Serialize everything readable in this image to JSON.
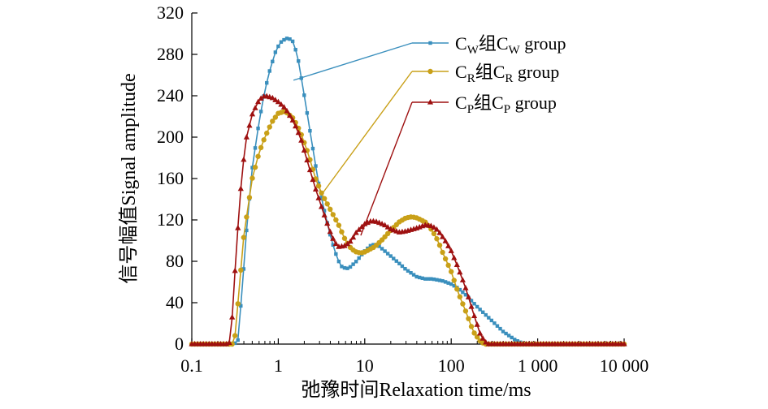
{
  "chart_data": {
    "type": "line",
    "xlabel": "弛豫时间Relaxation time/ms",
    "ylabel": "信号幅值Signal amplitude",
    "x_scale": "log",
    "xlim": [
      0.1,
      10000
    ],
    "ylim": [
      0,
      320
    ],
    "x_ticks": [
      0.1,
      1,
      10,
      100,
      1000,
      10000
    ],
    "x_tick_labels": [
      "0.1",
      "1",
      "10",
      "100",
      "1 000",
      "10 000"
    ],
    "y_ticks": [
      0,
      40,
      80,
      120,
      160,
      200,
      240,
      280,
      320
    ],
    "y_tick_labels": [
      "0",
      "40",
      "80",
      "120",
      "160",
      "200",
      "240",
      "280",
      "320"
    ],
    "grid": false,
    "legend_position": "top-right",
    "series": [
      {
        "name": "CW组CW group",
        "legend": {
          "a": "C",
          "a_sub": "W",
          "mid": "组C",
          "mid_sub": "W",
          "tail": " group"
        },
        "color": "#3a8fbd",
        "marker": "square",
        "points": [
          [
            0.1,
            0
          ],
          [
            0.3,
            0
          ],
          [
            0.34,
            2
          ],
          [
            0.38,
            50
          ],
          [
            0.43,
            110
          ],
          [
            0.5,
            170
          ],
          [
            0.6,
            215
          ],
          [
            0.7,
            245
          ],
          [
            0.8,
            265
          ],
          [
            0.95,
            285
          ],
          [
            1.1,
            293
          ],
          [
            1.3,
            296
          ],
          [
            1.5,
            292
          ],
          [
            1.7,
            275
          ],
          [
            2.0,
            240
          ],
          [
            2.5,
            190
          ],
          [
            3.0,
            150
          ],
          [
            3.5,
            125
          ],
          [
            4.0,
            105
          ],
          [
            4.5,
            90
          ],
          [
            5.0,
            80
          ],
          [
            5.5,
            74
          ],
          [
            6.5,
            73
          ],
          [
            8,
            80
          ],
          [
            10,
            90
          ],
          [
            12,
            96
          ],
          [
            14,
            96
          ],
          [
            17,
            90
          ],
          [
            20,
            85
          ],
          [
            25,
            78
          ],
          [
            30,
            72
          ],
          [
            40,
            65
          ],
          [
            50,
            63
          ],
          [
            60,
            63
          ],
          [
            80,
            61
          ],
          [
            100,
            58
          ],
          [
            120,
            54
          ],
          [
            150,
            47
          ],
          [
            200,
            36
          ],
          [
            300,
            22
          ],
          [
            400,
            12
          ],
          [
            550,
            4
          ],
          [
            700,
            0
          ],
          [
            10000,
            0
          ]
        ]
      },
      {
        "name": "CR组CR group",
        "legend": {
          "a": "C",
          "a_sub": "R",
          "mid": "组C",
          "mid_sub": "R",
          "tail": " group"
        },
        "color": "#c9a018",
        "marker": "circle",
        "points": [
          [
            0.1,
            0
          ],
          [
            0.3,
            0
          ],
          [
            0.32,
            10
          ],
          [
            0.35,
            50
          ],
          [
            0.4,
            105
          ],
          [
            0.5,
            160
          ],
          [
            0.6,
            185
          ],
          [
            0.7,
            200
          ],
          [
            0.85,
            215
          ],
          [
            1.0,
            223
          ],
          [
            1.2,
            225
          ],
          [
            1.5,
            218
          ],
          [
            1.8,
            205
          ],
          [
            2.2,
            185
          ],
          [
            2.7,
            160
          ],
          [
            3.2,
            145
          ],
          [
            4,
            130
          ],
          [
            5,
            115
          ],
          [
            6,
            100
          ],
          [
            7,
            92
          ],
          [
            8,
            89
          ],
          [
            9,
            88
          ],
          [
            10,
            89
          ],
          [
            13,
            94
          ],
          [
            16,
            101
          ],
          [
            20,
            110
          ],
          [
            25,
            118
          ],
          [
            30,
            122
          ],
          [
            35,
            123
          ],
          [
            40,
            122
          ],
          [
            50,
            118
          ],
          [
            60,
            110
          ],
          [
            70,
            100
          ],
          [
            80,
            88
          ],
          [
            100,
            70
          ],
          [
            120,
            50
          ],
          [
            150,
            30
          ],
          [
            180,
            12
          ],
          [
            220,
            2
          ],
          [
            250,
            0
          ],
          [
            10000,
            0
          ]
        ]
      },
      {
        "name": "CP组CP group",
        "legend": {
          "a": "C",
          "a_sub": "P",
          "mid": "组C",
          "mid_sub": "P",
          "tail": " group"
        },
        "color": "#9e1010",
        "marker": "triangle",
        "points": [
          [
            0.1,
            0
          ],
          [
            0.27,
            0
          ],
          [
            0.29,
            20
          ],
          [
            0.31,
            60
          ],
          [
            0.34,
            110
          ],
          [
            0.38,
            165
          ],
          [
            0.43,
            200
          ],
          [
            0.5,
            222
          ],
          [
            0.6,
            236
          ],
          [
            0.7,
            240
          ],
          [
            0.85,
            238
          ],
          [
            1.0,
            234
          ],
          [
            1.2,
            228
          ],
          [
            1.5,
            215
          ],
          [
            1.8,
            200
          ],
          [
            2.2,
            175
          ],
          [
            2.7,
            150
          ],
          [
            3.3,
            128
          ],
          [
            4,
            108
          ],
          [
            4.5,
            98
          ],
          [
            5,
            94
          ],
          [
            6,
            95
          ],
          [
            7,
            100
          ],
          [
            8,
            108
          ],
          [
            10,
            116
          ],
          [
            12,
            119
          ],
          [
            14,
            118
          ],
          [
            17,
            115
          ],
          [
            20,
            111
          ],
          [
            25,
            108
          ],
          [
            30,
            109
          ],
          [
            40,
            112
          ],
          [
            50,
            115
          ],
          [
            60,
            114
          ],
          [
            70,
            110
          ],
          [
            85,
            100
          ],
          [
            100,
            90
          ],
          [
            120,
            74
          ],
          [
            150,
            52
          ],
          [
            180,
            30
          ],
          [
            220,
            8
          ],
          [
            260,
            0
          ],
          [
            10000,
            0
          ]
        ]
      }
    ],
    "leaders": [
      {
        "series": 0,
        "from": [
          1.5,
          255
        ],
        "to": [
          0.72,
          0.894
        ]
      },
      {
        "series": 1,
        "from": [
          3.2,
          145
        ],
        "to": [
          0.72,
          0.784
        ]
      },
      {
        "series": 2,
        "from": [
          9,
          105
        ],
        "to": [
          0.72,
          0.674
        ]
      }
    ]
  }
}
